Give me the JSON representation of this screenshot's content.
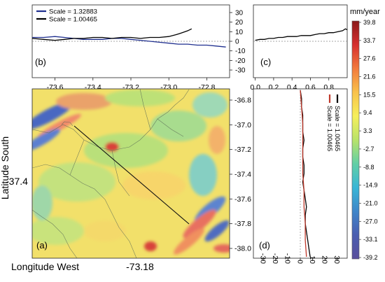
{
  "chart_data": [
    {
      "id": "b",
      "type": "line",
      "panel_label": "(b)",
      "xlim": [
        -73.72,
        -72.68
      ],
      "ylim": [
        -38,
        38
      ],
      "x_ticks": [
        -73.6,
        -73.4,
        -73.2,
        -73.0,
        -72.8
      ],
      "y_ticks": [
        30,
        20,
        10,
        0,
        -10,
        -20,
        -30
      ],
      "zero_line": true,
      "legend_position": "top-left",
      "series": [
        {
          "name": "Scale = 1.32883",
          "color": "#1f2f8f",
          "x": [
            -73.72,
            -73.66,
            -73.6,
            -73.55,
            -73.5,
            -73.45,
            -73.4,
            -73.35,
            -73.3,
            -73.25,
            -73.2,
            -73.15,
            -73.1,
            -73.05,
            -73.0,
            -72.95,
            -72.9,
            -72.85,
            -72.8,
            -72.75,
            -72.7
          ],
          "y": [
            4,
            4,
            5,
            4,
            3,
            2,
            2,
            2,
            3,
            3,
            2,
            1,
            0,
            -1,
            -2,
            -3,
            -3,
            -4,
            -4,
            -5,
            -6
          ]
        },
        {
          "name": "Scale = 1.00465",
          "color": "#000000",
          "x": [
            -73.72,
            -73.66,
            -73.6,
            -73.55,
            -73.5,
            -73.45,
            -73.4,
            -73.35,
            -73.3,
            -73.25,
            -73.2,
            -73.15,
            -73.1,
            -73.05,
            -73.0,
            -72.96,
            -72.93,
            -72.9,
            -72.88
          ],
          "y": [
            3,
            2,
            1,
            2,
            3,
            3,
            4,
            4,
            3,
            4,
            4,
            3,
            4,
            4,
            5,
            7,
            9,
            11,
            13
          ]
        }
      ]
    },
    {
      "id": "c",
      "type": "line",
      "panel_label": "(c)",
      "xlim": [
        -0.02,
        1.0
      ],
      "ylim": [
        -38,
        38
      ],
      "x_ticks": [
        "0.0",
        "0.2",
        "0.4",
        "0.6",
        "0.8"
      ],
      "zero_line": true,
      "series": [
        {
          "color": "#000000",
          "x": [
            0.0,
            0.05,
            0.1,
            0.15,
            0.2,
            0.25,
            0.3,
            0.35,
            0.4,
            0.45,
            0.5,
            0.55,
            0.6,
            0.65,
            0.7,
            0.75,
            0.8,
            0.85,
            0.9,
            0.95,
            0.98,
            1.0
          ],
          "y": [
            1,
            2,
            2,
            3,
            3,
            4,
            4,
            5,
            5,
            5,
            6,
            6,
            6,
            7,
            8,
            8,
            9,
            9,
            10,
            11,
            13,
            12
          ]
        }
      ]
    },
    {
      "id": "d",
      "type": "line",
      "orientation": "vertical",
      "panel_label": "(d)",
      "xlim": [
        -38,
        38
      ],
      "x_ticks": [
        -30,
        -20,
        -10,
        0,
        10,
        20,
        30
      ],
      "zero_line": true,
      "legend_position": "top-right",
      "series": [
        {
          "name": "Scale = 1.00465",
          "color": "#000000",
          "t": [
            0,
            0.05,
            0.1,
            0.15,
            0.2,
            0.25,
            0.3,
            0.35,
            0.4,
            0.45,
            0.5,
            0.55,
            0.6,
            0.65,
            0.7,
            0.75,
            0.8,
            0.85,
            0.9,
            0.95,
            1.0
          ],
          "value": [
            0,
            1,
            1,
            2,
            2,
            2,
            3,
            2,
            2,
            3,
            3,
            2,
            3,
            4,
            5,
            4,
            4,
            5,
            6,
            7,
            8
          ]
        },
        {
          "name": "Scale = 1.00465",
          "color": "#c0392b",
          "t": [
            0,
            0.1,
            0.2,
            0.3,
            0.4,
            0.5,
            0.6,
            0.7,
            0.8,
            0.9,
            1.0
          ],
          "value": [
            0,
            1,
            2,
            2,
            2,
            2,
            3,
            3,
            4,
            4,
            5
          ]
        }
      ]
    },
    {
      "id": "a",
      "type": "heatmap",
      "panel_label": "(a)",
      "xlabel": "Longitude West",
      "ylabel": "Latitude South",
      "x_center_label": "-73.18",
      "y_center_label": "-37.4",
      "lat_ticks": [
        "-36.8",
        "-37.0",
        "-37.2",
        "-37.4",
        "-37.6",
        "-37.8",
        "-38.0"
      ],
      "profile_line": true
    },
    {
      "id": "colorbar",
      "type": "colorbar",
      "unit": "mm/year",
      "ticks": [
        "39.8",
        "33.7",
        "27.6",
        "21.6",
        "15.5",
        "9.4",
        "3.3",
        "-2.7",
        "-8.8",
        "-14.9",
        "-21.0",
        "-27.0",
        "-33.1",
        "-39.2"
      ],
      "colors": [
        "#8b1a1a",
        "#d62f2f",
        "#f27a3c",
        "#f9c24b",
        "#f6ef5a",
        "#b8e36a",
        "#62cfa5",
        "#39b6d6",
        "#3f86c9",
        "#4a5db0",
        "#5a4f9c"
      ]
    }
  ]
}
